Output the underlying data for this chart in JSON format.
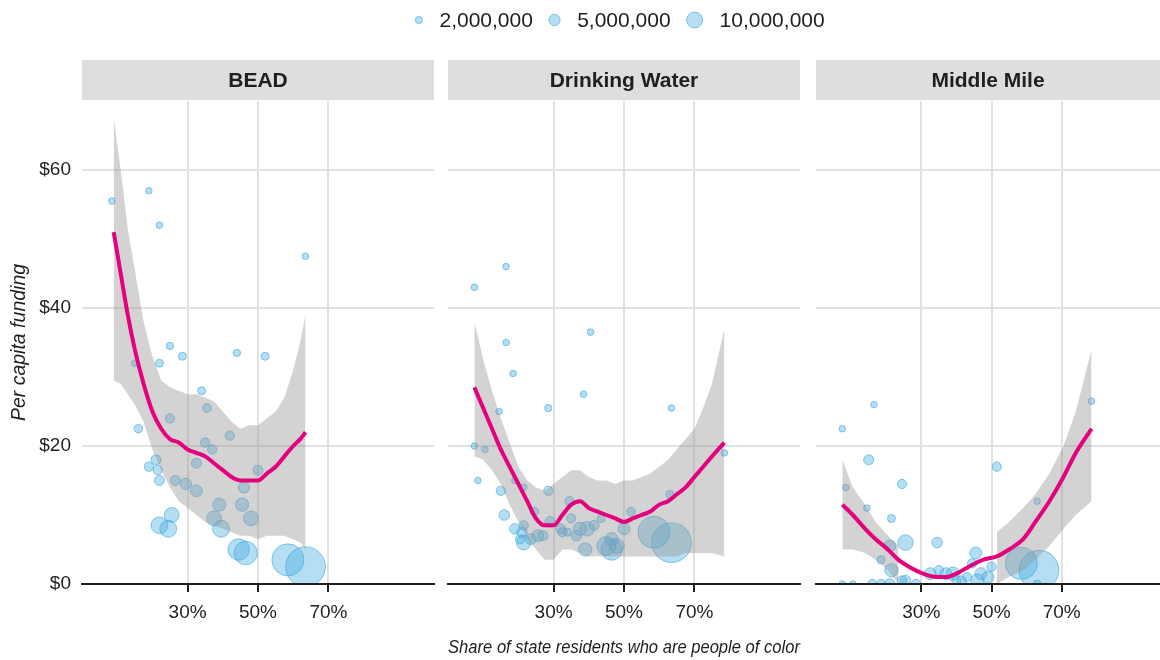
{
  "chart_data": [
    {
      "type": "bubble",
      "title": "BEAD",
      "ylabel": "Per capita funding",
      "xlim": [
        0,
        100
      ],
      "xticks": [
        {
          "value": 30,
          "label": "30%"
        },
        {
          "value": 50,
          "label": "50%"
        },
        {
          "value": 70,
          "label": "70%"
        }
      ],
      "ylim": [
        0,
        70
      ],
      "yticks": [
        {
          "value": 0,
          "label": "$0"
        },
        {
          "value": 20,
          "label": "$20"
        },
        {
          "value": 40,
          "label": "$40"
        },
        {
          "value": 60,
          "label": "$60"
        }
      ],
      "grid": true,
      "series": [
        {
          "color": "#45ace2",
          "x": [
            8.5,
            19,
            22,
            63.5,
            25,
            28.5,
            44,
            52,
            15,
            22,
            34,
            35.5,
            25,
            16,
            42,
            35,
            37,
            21,
            19,
            21.5,
            32.5,
            50,
            22,
            26.5,
            29.5,
            46,
            32.5,
            39,
            45.5,
            48,
            37.5,
            25.5,
            22,
            24.5,
            39.5,
            44.5,
            46.5,
            58.5,
            63.5
          ],
          "values": [
            55.5,
            57,
            52,
            47.5,
            34.5,
            33,
            33.5,
            33,
            32,
            32,
            28,
            25.5,
            24,
            22.5,
            21.5,
            20.5,
            19.5,
            18,
            17,
            16.5,
            17.5,
            16.5,
            15,
            15,
            14.5,
            14,
            13.5,
            11.5,
            11.5,
            9.5,
            9.5,
            10,
            8.5,
            8,
            8,
            5,
            4.5,
            3.5,
            2.5
          ],
          "sizes": [
            0.027,
            0.027,
            0.027,
            0.027,
            0.034,
            0.04,
            0.034,
            0.04,
            0.027,
            0.04,
            0.04,
            0.047,
            0.055,
            0.047,
            0.055,
            0.055,
            0.055,
            0.063,
            0.055,
            0.055,
            0.063,
            0.063,
            0.063,
            0.063,
            0.081,
            0.081,
            0.09,
            0.11,
            0.11,
            0.14,
            0.14,
            0.14,
            0.18,
            0.18,
            0.18,
            0.29,
            0.35,
            0.65,
            1
          ]
        },
        {
          "type": "line",
          "color": "#e5007d",
          "x": [
            9,
            11,
            13,
            15,
            17.5,
            20,
            22.5,
            25,
            27.5,
            30,
            32.5,
            35,
            37.5,
            40,
            42.5,
            45,
            47.5,
            50,
            52.5,
            55,
            57.5,
            60,
            62,
            63.5
          ],
          "values": [
            51,
            45,
            39,
            34,
            29,
            25,
            22.5,
            21,
            20.5,
            19.5,
            19,
            18.5,
            17.5,
            16.5,
            15.5,
            15,
            15,
            15,
            16,
            17,
            18.5,
            20,
            21,
            22
          ],
          "upper": [
            67.5,
            60,
            51.5,
            45.5,
            38,
            33,
            29.5,
            28.5,
            28,
            27.5,
            27.5,
            27,
            26.5,
            25,
            23.5,
            22.5,
            23,
            23,
            24,
            25,
            27,
            31,
            35,
            39
          ],
          "lower": [
            29.5,
            29,
            27.5,
            26,
            23.5,
            19.5,
            16.5,
            14,
            12,
            11,
            10,
            9,
            8.5,
            8,
            7.5,
            7,
            7,
            6.5,
            7,
            7,
            7,
            6.5,
            6,
            5
          ]
        }
      ]
    },
    {
      "type": "bubble",
      "title": "Drinking Water",
      "xlabel": "Share of state residents who are people of color",
      "size_legend": [
        {
          "value": 2000000,
          "label": "2,000,000"
        },
        {
          "value": 5000000,
          "label": "5,000,000"
        },
        {
          "value": 10000000,
          "label": "10,000,000"
        }
      ],
      "tick_labels": "x",
      "xlim": [
        0,
        100
      ],
      "xticks": [
        {
          "value": 30,
          "label": "30%"
        },
        {
          "value": 50,
          "label": "50%"
        },
        {
          "value": 70,
          "label": "70%"
        }
      ],
      "ylim": [
        0,
        70
      ],
      "yticks": [
        0,
        20,
        40,
        60
      ],
      "grid": true,
      "series": [
        {
          "color": "#45ace2",
          "x": [
            7.5,
            16.5,
            16.5,
            40.5,
            18.5,
            38.5,
            14.5,
            28.5,
            63.5,
            7.5,
            10.5,
            78.5,
            8.5,
            15,
            19,
            21.5,
            28.5,
            16,
            34.5,
            24.5,
            63,
            52,
            19,
            21.5,
            21,
            21.5,
            20.5,
            23.5,
            25.5,
            27,
            29,
            32,
            35,
            32.5,
            34,
            36.5,
            37.5,
            39.5,
            41.5,
            43.5,
            39,
            45,
            46.5,
            46.5,
            48,
            50,
            58.5,
            63.5
          ],
          "values": [
            43,
            46,
            35,
            36.5,
            30.5,
            27.5,
            25,
            25.5,
            25.5,
            20,
            19.5,
            19,
            15,
            13.5,
            15,
            14,
            13.5,
            10,
            12,
            10.5,
            13,
            10.5,
            8,
            8.5,
            7.5,
            6,
            6.5,
            6.5,
            7,
            7,
            9,
            8,
            9.5,
            7.5,
            7.5,
            7,
            8,
            8,
            8.5,
            9.5,
            5,
            5.5,
            6.5,
            5,
            5.5,
            8,
            7.5,
            6
          ],
          "sizes": [
            1700000,
            1700000,
            1700000,
            1700000,
            1700000,
            1700000,
            1700000,
            2100000,
            1700000,
            1700000,
            1700000,
            1700000,
            1700000,
            3400000,
            1700000,
            1700000,
            3400000,
            4400000,
            3400000,
            2900000,
            2500000,
            2900000,
            4400000,
            3400000,
            4400000,
            8400000,
            3400000,
            4400000,
            5600000,
            3900000,
            4400000,
            3900000,
            3400000,
            3400000,
            2500000,
            4400000,
            6900000,
            8400000,
            3900000,
            2500000,
            6900000,
            14000000,
            6900000,
            18000000,
            8400000,
            5600000,
            40000000,
            62000000
          ]
        },
        {
          "type": "line",
          "color": "#e5007d",
          "x": [
            7.5,
            10,
            12.5,
            15,
            17.5,
            20,
            22.5,
            25,
            27.5,
            30,
            32.5,
            35,
            37.5,
            40,
            42.5,
            45,
            47.5,
            50,
            52.5,
            55,
            57.5,
            60,
            62.5,
            65,
            67.5,
            70,
            72.5,
            75,
            78.5
          ],
          "values": [
            28.5,
            25.5,
            22.5,
            19.5,
            17,
            14.5,
            12,
            9.5,
            8.5,
            8.5,
            10,
            11.5,
            12,
            11,
            10.5,
            10,
            9.5,
            9,
            9.5,
            10,
            10.5,
            11.5,
            12,
            13,
            14,
            15.5,
            17,
            18.5,
            20.5
          ],
          "upper": [
            38,
            32.5,
            28,
            24,
            20.5,
            17,
            15,
            14,
            13.5,
            14.5,
            15.5,
            16.5,
            16.5,
            15.5,
            15,
            15,
            14.5,
            15,
            15,
            15.5,
            16,
            17,
            18,
            19.5,
            21,
            22.5,
            25.5,
            29,
            37
          ],
          "lower": [
            18.5,
            18,
            16.5,
            14.5,
            11.5,
            9,
            6.5,
            5,
            3.5,
            3.5,
            5,
            5,
            4.5,
            4,
            4,
            4,
            4,
            4,
            4,
            4,
            4,
            4,
            4,
            4,
            4.5,
            4.5,
            4.5,
            4.5,
            4
          ]
        }
      ]
    },
    {
      "type": "bubble",
      "title": "Middle Mile",
      "tick_labels": "x",
      "xlim": [
        0,
        98
      ],
      "xticks": [
        {
          "value": 30,
          "label": "30%"
        },
        {
          "value": 50,
          "label": "50%"
        },
        {
          "value": 70,
          "label": "70%"
        }
      ],
      "ylim": [
        0,
        70
      ],
      "yticks": [
        0,
        20,
        40,
        60
      ],
      "grid": true,
      "series": [
        {
          "color": "#45ace2",
          "x": [
            7.5,
            16.5,
            78.5,
            15,
            51.5,
            24.5,
            8.5,
            14.5,
            63,
            21.5,
            21,
            25.5,
            34.5,
            18.5,
            45.5,
            44.5,
            50,
            58.5,
            63.5,
            21.5,
            32.5,
            35,
            37,
            39,
            43,
            47,
            7.5,
            10.5,
            16,
            18.5,
            21,
            25.5,
            28.5,
            24.5,
            41.5,
            63,
            46,
            40,
            49
          ],
          "values": [
            22.5,
            26,
            26.5,
            18,
            17,
            14.5,
            14,
            11,
            12,
            9.5,
            5.5,
            6,
            6,
            3.5,
            4.5,
            3,
            2.5,
            3,
            2,
            2,
            1.5,
            2,
            1.5,
            1.5,
            1,
            1.5,
            0,
            0,
            0,
            0,
            0,
            0.5,
            0,
            0.5,
            0.5,
            0,
            0.5,
            0.5,
            1
          ],
          "sizes": [
            0.027,
            0.027,
            0.027,
            0.063,
            0.055,
            0.055,
            0.027,
            0.027,
            0.027,
            0.04,
            0.09,
            0.15,
            0.071,
            0.04,
            0.09,
            0.055,
            0.055,
            0.65,
            1,
            0.11,
            0.09,
            0.055,
            0.09,
            0.11,
            0.055,
            0.09,
            0.027,
            0.027,
            0.055,
            0.055,
            0.071,
            0.071,
            0.055,
            0.055,
            0.055,
            0.04,
            0.11,
            0.055,
            0.09
          ]
        },
        {
          "type": "line",
          "color": "#e5007d",
          "x": [
            7.5,
            10.5,
            14,
            17,
            20.5,
            23.5,
            26.5,
            30.5,
            34.5,
            37,
            40,
            43.5,
            47.5,
            51.5,
            55,
            59,
            62.5,
            66.5,
            70.5,
            74,
            78.5
          ],
          "values": [
            11.5,
            10,
            8,
            6.5,
            5,
            3.5,
            2.5,
            1.5,
            1,
            1,
            1.5,
            2.5,
            3.5,
            4,
            5,
            6.5,
            9,
            12,
            15.5,
            19,
            22.5
          ],
          "upper": [
            18,
            14,
            11.5,
            9,
            7,
            5.5,
            null,
            null,
            null,
            null,
            null,
            null,
            null,
            7.5,
            9,
            11,
            13,
            16,
            20,
            25,
            34
          ],
          "lower": [
            5,
            5,
            4.5,
            3.5,
            2,
            0,
            null,
            null,
            null,
            null,
            null,
            null,
            null,
            0,
            1,
            2,
            3.5,
            5.5,
            8,
            10,
            12
          ]
        }
      ]
    }
  ]
}
